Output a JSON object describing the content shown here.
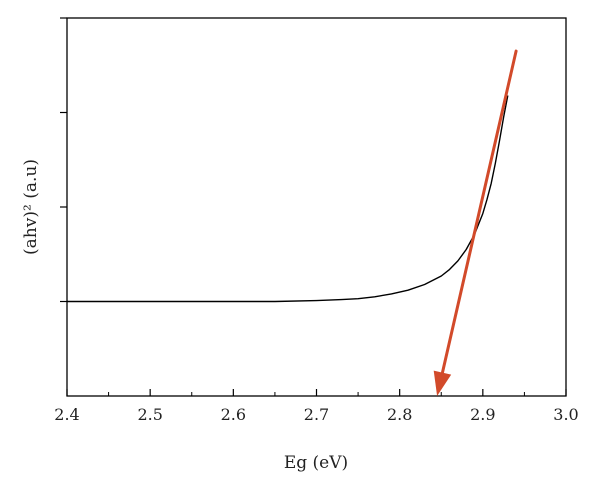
{
  "chart_data": {
    "type": "line",
    "title": "",
    "xlabel": "Eg (eV)",
    "ylabel": "(ahv)² (a.u)",
    "xlim": [
      2.4,
      3.0
    ],
    "ylim": [
      0,
      4
    ],
    "x_ticks": [
      "2.4",
      "2.5",
      "2.6",
      "2.7",
      "2.8",
      "2.9",
      "3.0"
    ],
    "x_tick_values": [
      2.4,
      2.5,
      2.6,
      2.7,
      2.8,
      2.9,
      3.0
    ],
    "y_ticks_unlabeled": [
      1,
      2,
      3,
      4
    ],
    "grid": false,
    "line_color": "#000000",
    "series": [
      {
        "x": [
          2.4,
          2.5,
          2.6,
          2.65,
          2.7,
          2.73,
          2.75,
          2.77,
          2.79,
          2.81,
          2.83,
          2.85,
          2.86,
          2.87,
          2.88,
          2.89,
          2.9,
          2.905,
          2.91,
          2.915,
          2.92,
          2.925,
          2.93
        ],
        "values": [
          1.0,
          1.0,
          1.0,
          1.0,
          1.01,
          1.02,
          1.03,
          1.05,
          1.08,
          1.12,
          1.18,
          1.27,
          1.34,
          1.43,
          1.55,
          1.71,
          1.93,
          2.08,
          2.25,
          2.46,
          2.7,
          2.95,
          3.18
        ]
      }
    ],
    "annotations": [
      {
        "type": "arrow",
        "color": "#d24a2a",
        "from": [
          2.94,
          3.65
        ],
        "to": [
          2.845,
          0.0
        ]
      }
    ]
  }
}
